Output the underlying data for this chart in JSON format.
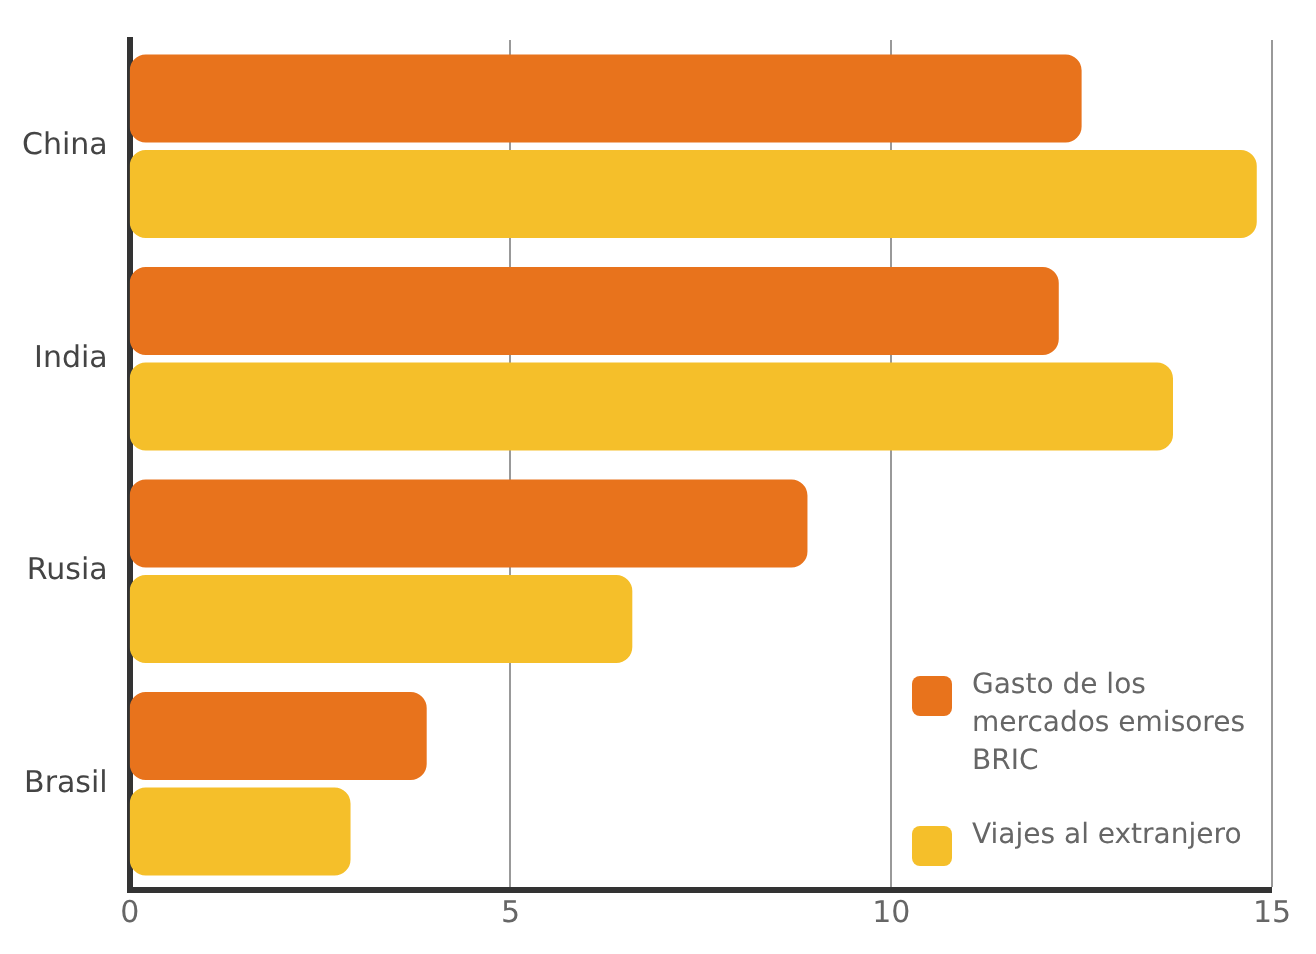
{
  "chart_data": {
    "type": "bar",
    "orientation": "horizontal",
    "categories": [
      "China",
      "India",
      "Rusia",
      "Brasil"
    ],
    "series": [
      {
        "name": "Gasto de los mercados emisores BRIC",
        "color": "#e8731c",
        "values": [
          12.5,
          12.2,
          8.9,
          3.9
        ]
      },
      {
        "name": "Viajes al extranjero",
        "color": "#f5bf2a",
        "values": [
          14.8,
          13.7,
          6.6,
          2.9
        ]
      }
    ],
    "xlim": [
      0,
      15
    ],
    "xticks": [
      0,
      5,
      10,
      15
    ],
    "grid": "x",
    "legend": "bottom right"
  }
}
